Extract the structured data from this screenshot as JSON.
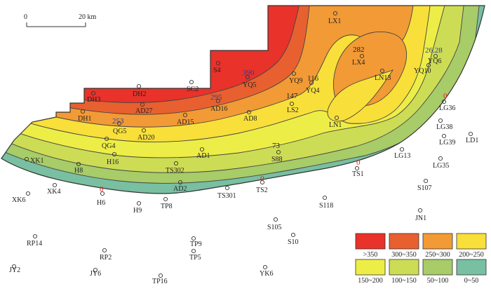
{
  "map": {
    "scale_bar": {
      "start_label": "0",
      "end_label": "20 km"
    },
    "colors": {
      "gt350": "#e8322a",
      "c300_350": "#e8602f",
      "c250_300": "#f29a35",
      "c200_250": "#f8df3a",
      "c150_200": "#eded47",
      "c100_150": "#cddc55",
      "c50_100": "#a7cc68",
      "c0_50": "#79bfa2",
      "well_symbol": "#333333",
      "value_red": "#e02020",
      "value_blue": "#2a3ea0",
      "value_dark": "#222222"
    },
    "legend": [
      {
        "label": ">350",
        "color": "#e8322a"
      },
      {
        "label": "300~350",
        "color": "#e8602f"
      },
      {
        "label": "250~300",
        "color": "#f29a35"
      },
      {
        "label": "200~250",
        "color": "#f8df3a"
      },
      {
        "label": "150~200",
        "color": "#eded47"
      },
      {
        "label": "100~150",
        "color": "#cddc55"
      },
      {
        "label": "50~100",
        "color": "#a7cc68"
      },
      {
        "label": "0~50",
        "color": "#79bfa2"
      }
    ],
    "wells": [
      "LX1",
      "LX4",
      "YQ6",
      "YQ10",
      "LN13",
      "LG36",
      "LG38",
      "LG39",
      "LD1",
      "S4",
      "SC2",
      "YQ5",
      "YQ9",
      "YQ4",
      "LS2",
      "LN1",
      "DH2",
      "DH3",
      "AD27",
      "AD16",
      "AD15",
      "AD8",
      "DH1",
      "QG5",
      "AD20",
      "QG4",
      "H16",
      "AD1",
      "S88",
      "LG13",
      "LG35",
      "XK1",
      "H8",
      "TS302",
      "TS1",
      "AD2",
      "TS2",
      "TS301",
      "XK4",
      "XK6",
      "H6",
      "H9",
      "TP8",
      "S118",
      "S107",
      "JN1",
      "S105",
      "S10",
      "RP14",
      "TP9",
      "RP2",
      "TP5",
      "JY2",
      "JY6",
      "TP16",
      "YK6"
    ],
    "values": [
      {
        "text": "282",
        "color": "dark"
      },
      {
        "text": "26.28",
        "color": "blue"
      },
      {
        "text": "0",
        "color": "red"
      },
      {
        "text": "390",
        "color": "blue"
      },
      {
        "text": "116",
        "color": "dark"
      },
      {
        "text": "147",
        "color": "dark"
      },
      {
        "text": "295",
        "color": "blue"
      },
      {
        "text": "253",
        "color": "blue"
      },
      {
        "text": "73",
        "color": "dark"
      },
      {
        "text": "0",
        "color": "red"
      },
      {
        "text": "0",
        "color": "red"
      },
      {
        "text": "0",
        "color": "red"
      }
    ]
  }
}
